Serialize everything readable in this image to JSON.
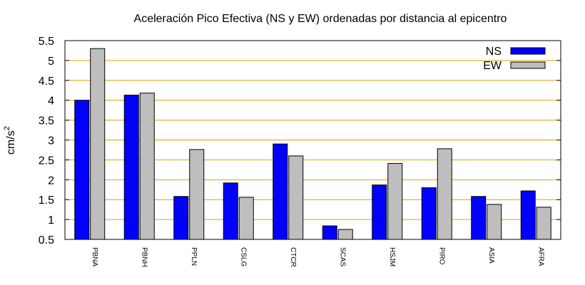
{
  "chart_data": {
    "type": "bar",
    "title": "Aceleración Pico Efectiva (NS y EW) ordenadas por distancia al epicentro",
    "ylabel_base": "cm/s",
    "ylabel_exp": "2",
    "xlabel": "",
    "ylim": [
      0.5,
      5.5
    ],
    "yticks": [
      "0.5",
      "1",
      "1.5",
      "2",
      "2.5",
      "3",
      "3.5",
      "4",
      "4.5",
      "5",
      "5.5"
    ],
    "grid": true,
    "grid_color": "#e0a000",
    "legend_position": "top-right",
    "categories": [
      "PBNA",
      "PBNH",
      "PPLN",
      "CSLG",
      "CTCR",
      "SCAS",
      "HSJM",
      "PIRO",
      "ASIA",
      "AFRA"
    ],
    "series": [
      {
        "name": "NS",
        "color": "#0000ff",
        "values": [
          4.0,
          4.13,
          1.58,
          1.92,
          2.9,
          0.84,
          1.87,
          1.8,
          1.58,
          1.72
        ]
      },
      {
        "name": "EW",
        "color": "#bebebe",
        "values": [
          5.3,
          4.18,
          2.76,
          1.56,
          2.6,
          0.75,
          2.41,
          2.78,
          1.38,
          1.31
        ]
      }
    ]
  }
}
